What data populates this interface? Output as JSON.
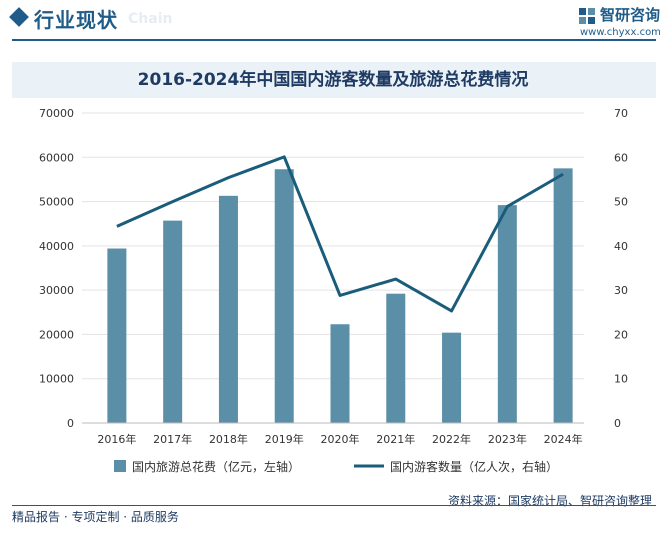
{
  "header": {
    "title": "行业现状",
    "watermark": "Chain",
    "logo_name": "智研咨询",
    "logo_url": "www.chyxx.com"
  },
  "chart_data": {
    "type": "bar",
    "title": "2016-2024年中国国内游客数量及旅游总花费情况",
    "categories": [
      "2016年",
      "2017年",
      "2018年",
      "2019年",
      "2020年",
      "2021年",
      "2022年",
      "2023年",
      "2024年"
    ],
    "series": [
      {
        "name": "国内旅游总花费（亿元，左轴）",
        "type": "bar",
        "axis": "left",
        "values": [
          39400,
          45700,
          51300,
          57300,
          22300,
          29200,
          20400,
          49200,
          57500
        ]
      },
      {
        "name": "国内游客数量（亿人次，右轴）",
        "type": "line",
        "axis": "right",
        "values": [
          44.4,
          50.0,
          55.4,
          60.1,
          28.8,
          32.5,
          25.3,
          48.9,
          56.2
        ]
      }
    ],
    "y_left": {
      "min": 0,
      "max": 70000,
      "ticks": [
        "0",
        "10000",
        "20000",
        "30000",
        "40000",
        "50000",
        "60000",
        "70000"
      ]
    },
    "y_right": {
      "min": 0,
      "max": 70,
      "ticks": [
        "0",
        "10",
        "20",
        "30",
        "40",
        "50",
        "60",
        "70"
      ]
    },
    "legend_position": "bottom",
    "grid": true,
    "colors": {
      "bar": "#5b8fa8",
      "line": "#1a5d7a"
    }
  },
  "footer": {
    "left": "精品报告 · 专项定制 · 品质服务",
    "source": "资料来源：国家统计局、智研咨询整理"
  }
}
